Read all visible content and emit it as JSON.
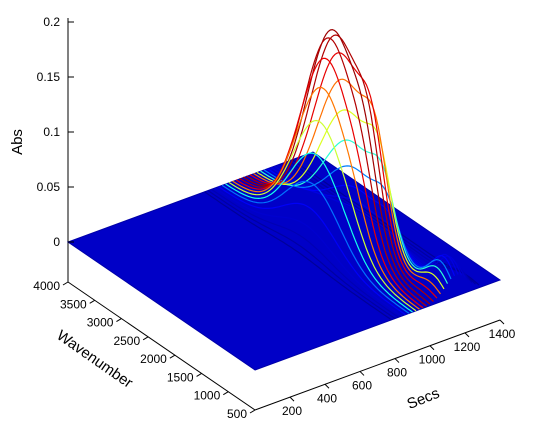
{
  "chart_data": {
    "type": "surface",
    "title": "",
    "xlabel": "Secs",
    "ylabel": "Wavenumber",
    "zlabel": "Abs",
    "x_ticks": [
      200,
      400,
      600,
      800,
      1000,
      1200,
      1400
    ],
    "y_ticks": [
      500,
      1000,
      1500,
      2000,
      2500,
      3000,
      3500,
      4000
    ],
    "z_ticks": [
      "0",
      "0.05",
      "0.1",
      "0.15",
      "0.2"
    ],
    "xlim": [
      0,
      1400
    ],
    "ylim": [
      500,
      4000
    ],
    "zlim": [
      0,
      0.2
    ],
    "baseline_value": 0,
    "colormap": [
      "#00008f",
      "#0000ff",
      "#00ffff",
      "#ffff00",
      "#ff0000",
      "#800000"
    ],
    "peaks": [
      {
        "secs": 1000,
        "wavenumber": 2300,
        "abs": 0.19
      },
      {
        "secs": 1050,
        "wavenumber": 1700,
        "abs": 0.06
      },
      {
        "secs": 1150,
        "wavenumber": 700,
        "abs": 0.03
      }
    ]
  }
}
